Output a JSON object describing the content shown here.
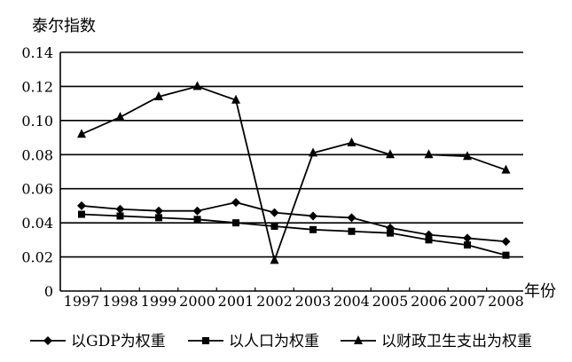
{
  "chart_data": {
    "type": "line",
    "title": "",
    "ylabel": "泰尔指数",
    "xlabel": "年份",
    "ylim": [
      0,
      0.14
    ],
    "y_ticks": [
      "0",
      "0.02",
      "0.04",
      "0.06",
      "0.08",
      "0.10",
      "0.12",
      "0.14"
    ],
    "categories": [
      "1997",
      "1998",
      "1999",
      "2000",
      "2001",
      "2002",
      "2003",
      "2004",
      "2005",
      "2006",
      "2007",
      "2008"
    ],
    "grid": "horizontal",
    "legend_position": "bottom",
    "series": [
      {
        "name": "以GDP为权重",
        "marker": "diamond",
        "values": [
          0.05,
          0.048,
          0.047,
          0.047,
          0.052,
          0.046,
          0.044,
          0.043,
          0.037,
          0.033,
          0.031,
          0.029
        ]
      },
      {
        "name": "以人口为权重",
        "marker": "square",
        "values": [
          0.045,
          0.044,
          0.043,
          0.042,
          0.04,
          0.038,
          0.036,
          0.035,
          0.034,
          0.03,
          0.027,
          0.021
        ]
      },
      {
        "name": "以财政卫生支出为权重",
        "marker": "triangle",
        "values": [
          0.092,
          0.102,
          0.114,
          0.12,
          0.112,
          0.018,
          0.081,
          0.087,
          0.08,
          0.08,
          0.079,
          0.071
        ]
      }
    ]
  }
}
